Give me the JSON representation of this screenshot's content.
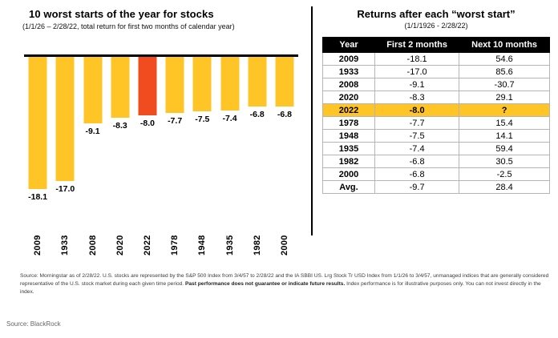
{
  "chart_data": {
    "type": "bar",
    "title": "10 worst starts of the year for stocks",
    "subtitle": "(1/1/26 – 2/28/22, total return for first two months of calendar year)",
    "categories": [
      "2009",
      "1933",
      "2008",
      "2020",
      "2022",
      "1978",
      "1948",
      "1935",
      "1982",
      "2000"
    ],
    "values": [
      -18.1,
      -17.0,
      -9.1,
      -8.3,
      -8.0,
      -7.7,
      -7.5,
      -7.4,
      -6.8,
      -6.8
    ],
    "value_labels": [
      "-18.1",
      "-17.0",
      "-9.1",
      "-8.3",
      "-8.0",
      "-7.7",
      "-7.5",
      "-7.4",
      "-6.8",
      "-6.8"
    ],
    "highlight_category": "2022",
    "bar_color": "#FFC425",
    "highlight_color": "#F04C1F",
    "baseline": 0,
    "ylim": [
      -20,
      0
    ],
    "xlabel": "",
    "ylabel": "",
    "grid": false,
    "legend": "none"
  },
  "table": {
    "title": "Returns after each “worst start”",
    "subtitle": "(1/1/1926 - 2/28/22)",
    "columns": [
      "Year",
      "First 2 months",
      "Next 10 months"
    ],
    "highlight_color": "#FFC425",
    "rows": [
      {
        "year": "2009",
        "first": "-18.1",
        "next": "54.6",
        "highlight": false
      },
      {
        "year": "1933",
        "first": "-17.0",
        "next": "85.6",
        "highlight": false
      },
      {
        "year": "2008",
        "first": "-9.1",
        "next": "-30.7",
        "highlight": false
      },
      {
        "year": "2020",
        "first": "-8.3",
        "next": "29.1",
        "highlight": false
      },
      {
        "year": "2022",
        "first": "-8.0",
        "next": "?",
        "highlight": true
      },
      {
        "year": "1978",
        "first": "-7.7",
        "next": "15.4",
        "highlight": false
      },
      {
        "year": "1948",
        "first": "-7.5",
        "next": "14.1",
        "highlight": false
      },
      {
        "year": "1935",
        "first": "-7.4",
        "next": "59.4",
        "highlight": false
      },
      {
        "year": "1982",
        "first": "-6.8",
        "next": "30.5",
        "highlight": false
      },
      {
        "year": "2000",
        "first": "-6.8",
        "next": "-2.5",
        "highlight": false
      },
      {
        "year": "Avg.",
        "first": "-9.7",
        "next": "28.4",
        "highlight": false
      }
    ]
  },
  "footnote": {
    "part1": "Source: Morningstar as of 2/28/22. U.S. stocks are represented by the S&P 500 Index from 3/4/57 to 2/28/22 and the IA SBBI US. Lrg Stock Tr USD Index from 1/1/26 to 3/4/57, unmanaged indices that are generally considered representative of the U.S. stock market during each given time period. ",
    "bold": "Past performance does not guarantee or indicate future results.",
    "part2": " Index performance is for illustrative purposes only. You can not invest directly in the index."
  },
  "source_line": "Source: BlackRock"
}
